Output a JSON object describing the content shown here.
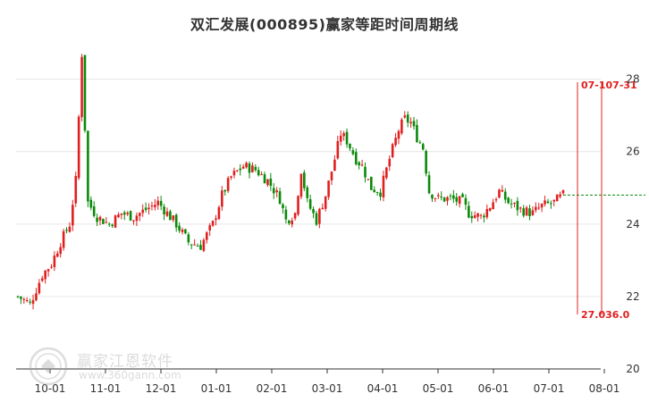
{
  "title": "双汇发展(000895)赢家等距时间周期线",
  "watermark": {
    "name": "赢家江恩软件",
    "url": "www.360gann.com"
  },
  "colors": {
    "up": "#e02020",
    "down": "#0a8a0a",
    "cycle_line": "#e02020",
    "last_price_line": "#0a8a0a",
    "grid": "#e6e6e6",
    "axis": "#333333"
  },
  "chart_data": {
    "type": "candlestick",
    "title": "双汇发展(000895)赢家等距时间周期线",
    "xlabel": "",
    "ylabel": "",
    "ylim": [
      20,
      29.2
    ],
    "y_ticks": [
      20,
      22,
      24,
      26,
      28
    ],
    "y_axis_position": "right",
    "grid": "horizontal",
    "x_ticks": [
      "10-01",
      "11-01",
      "12-01",
      "01-01",
      "02-01",
      "03-01",
      "04-01",
      "05-01",
      "06-01",
      "07-01",
      "08-01"
    ],
    "last_price": 24.8,
    "cycle_lines": [
      {
        "date_label": "07-10",
        "price_label": "27.0"
      },
      {
        "date_label": "07-31",
        "price_label": "36.0"
      }
    ],
    "cycle_labels": {
      "top": "07-107-31",
      "bottom": "27.036.0"
    },
    "price_path": [
      [
        0,
        22.0
      ],
      [
        4,
        21.8
      ],
      [
        8,
        22.6
      ],
      [
        11,
        22.9
      ],
      [
        14,
        23.5
      ],
      [
        17,
        24.0
      ],
      [
        19,
        25.2
      ],
      [
        21,
        28.7
      ],
      [
        23,
        24.6
      ],
      [
        26,
        24.2
      ],
      [
        30,
        24.0
      ],
      [
        34,
        24.3
      ],
      [
        38,
        24.2
      ],
      [
        42,
        24.4
      ],
      [
        46,
        24.6
      ],
      [
        49,
        24.3
      ],
      [
        52,
        24.0
      ],
      [
        56,
        23.5
      ],
      [
        60,
        23.4
      ],
      [
        64,
        24.0
      ],
      [
        67,
        24.8
      ],
      [
        70,
        25.3
      ],
      [
        74,
        25.6
      ],
      [
        78,
        25.5
      ],
      [
        82,
        25.2
      ],
      [
        86,
        24.7
      ],
      [
        88,
        24.1
      ],
      [
        91,
        24.3
      ],
      [
        93,
        25.5
      ],
      [
        95,
        24.6
      ],
      [
        98,
        24.1
      ],
      [
        101,
        24.8
      ],
      [
        104,
        25.8
      ],
      [
        106,
        26.5
      ],
      [
        108,
        26.3
      ],
      [
        111,
        25.8
      ],
      [
        113,
        25.6
      ],
      [
        116,
        25.0
      ],
      [
        119,
        24.9
      ],
      [
        122,
        25.8
      ],
      [
        125,
        26.6
      ],
      [
        127,
        26.9
      ],
      [
        129,
        26.8
      ],
      [
        131,
        26.4
      ],
      [
        133,
        26.1
      ],
      [
        135,
        24.9
      ],
      [
        138,
        24.7
      ],
      [
        142,
        24.7
      ],
      [
        146,
        24.6
      ],
      [
        148,
        24.3
      ],
      [
        152,
        24.2
      ],
      [
        155,
        24.5
      ],
      [
        158,
        24.9
      ],
      [
        161,
        24.6
      ],
      [
        165,
        24.4
      ],
      [
        169,
        24.3
      ],
      [
        172,
        24.5
      ],
      [
        176,
        24.6
      ],
      [
        179,
        24.8
      ]
    ]
  }
}
